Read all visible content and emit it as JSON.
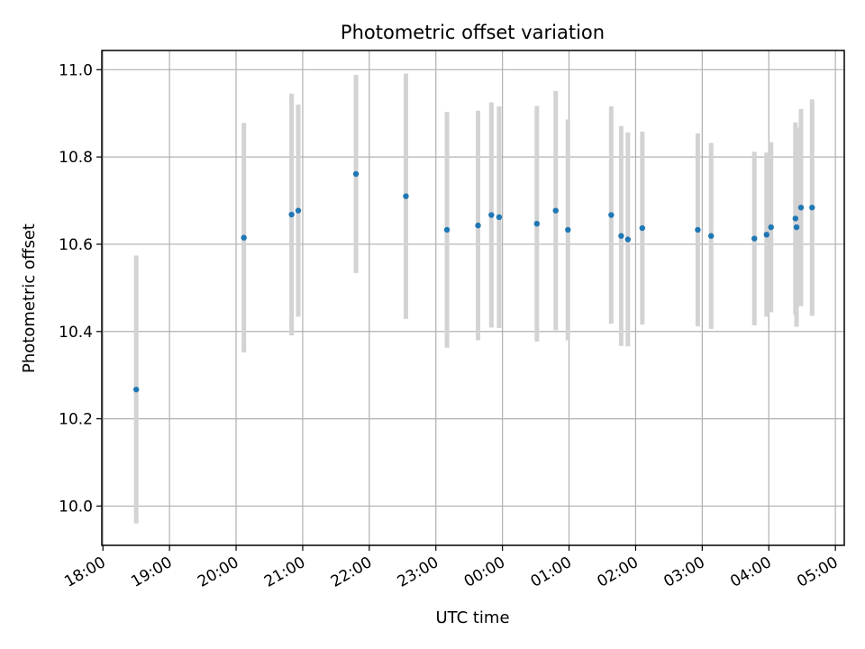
{
  "chart_data": {
    "type": "scatter",
    "title": "Photometric offset variation",
    "xlabel": "UTC time",
    "ylabel": "Photometric offset",
    "x_ticks": [
      "18:00",
      "19:00",
      "20:00",
      "21:00",
      "22:00",
      "23:00",
      "00:00",
      "01:00",
      "02:00",
      "03:00",
      "04:00",
      "05:00"
    ],
    "y_ticks": [
      "10.0",
      "10.2",
      "10.4",
      "10.6",
      "10.8",
      "11.0"
    ],
    "xlim": [
      "2023-01-01T17:59",
      "2023-01-02T05:08"
    ],
    "ylim": [
      9.91,
      11.044
    ],
    "grid": true,
    "marker_color": "#1f77b4",
    "errorbar_color": "#d3d3d3",
    "series": [
      {
        "points": [
          {
            "x": "2023-01-01T18:30",
            "y": 10.267,
            "err": 0.307
          },
          {
            "x": "2023-01-01T20:07",
            "y": 10.615,
            "err": 0.263
          },
          {
            "x": "2023-01-01T20:50",
            "y": 10.668,
            "err": 0.277
          },
          {
            "x": "2023-01-01T20:56",
            "y": 10.677,
            "err": 0.243
          },
          {
            "x": "2023-01-01T21:48",
            "y": 10.761,
            "err": 0.227
          },
          {
            "x": "2023-01-01T22:33",
            "y": 10.71,
            "err": 0.281
          },
          {
            "x": "2023-01-01T23:10",
            "y": 10.633,
            "err": 0.27
          },
          {
            "x": "2023-01-01T23:38",
            "y": 10.643,
            "err": 0.263
          },
          {
            "x": "2023-01-01T23:50",
            "y": 10.667,
            "err": 0.258
          },
          {
            "x": "2023-01-01T23:57",
            "y": 10.662,
            "err": 0.254
          },
          {
            "x": "2023-01-02T00:31",
            "y": 10.647,
            "err": 0.27
          },
          {
            "x": "2023-01-02T00:48",
            "y": 10.677,
            "err": 0.274
          },
          {
            "x": "2023-01-02T00:59",
            "y": 10.633,
            "err": 0.253
          },
          {
            "x": "2023-01-02T01:38",
            "y": 10.667,
            "err": 0.249
          },
          {
            "x": "2023-01-02T01:47",
            "y": 10.619,
            "err": 0.252
          },
          {
            "x": "2023-01-02T01:53",
            "y": 10.611,
            "err": 0.245
          },
          {
            "x": "2023-01-02T02:06",
            "y": 10.637,
            "err": 0.221
          },
          {
            "x": "2023-01-02T02:56",
            "y": 10.633,
            "err": 0.221
          },
          {
            "x": "2023-01-02T03:08",
            "y": 10.619,
            "err": 0.213
          },
          {
            "x": "2023-01-02T03:47",
            "y": 10.613,
            "err": 0.199
          },
          {
            "x": "2023-01-02T03:58",
            "y": 10.622,
            "err": 0.188
          },
          {
            "x": "2023-01-02T04:02",
            "y": 10.639,
            "err": 0.195
          },
          {
            "x": "2023-01-02T04:24",
            "y": 10.659,
            "err": 0.22
          },
          {
            "x": "2023-01-02T04:25",
            "y": 10.639,
            "err": 0.228
          },
          {
            "x": "2023-01-02T04:29",
            "y": 10.684,
            "err": 0.226
          },
          {
            "x": "2023-01-02T04:39",
            "y": 10.684,
            "err": 0.248
          }
        ]
      }
    ]
  }
}
